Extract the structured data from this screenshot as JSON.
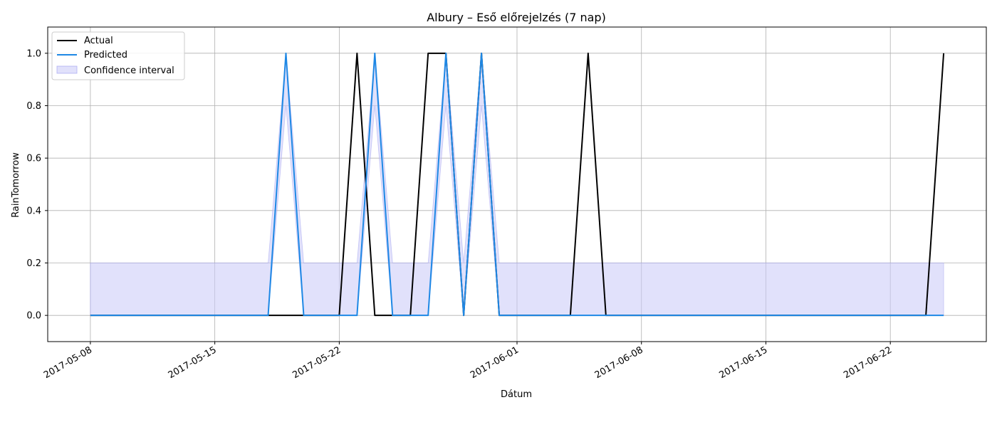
{
  "chart_data": {
    "type": "line",
    "title": "Albury – Eső előrejelzés (7 nap)",
    "xlabel": "Dátum",
    "ylabel": "RainTomorrow",
    "ylim": [
      -0.1,
      1.1
    ],
    "xlim_day_offsets": [
      -2.4,
      50.4
    ],
    "start_date": "2017-05-08",
    "grid": true,
    "legend_position": "upper-left",
    "x_tick_offsets": [
      0,
      7,
      14,
      24,
      31,
      38,
      45
    ],
    "x_tick_labels": [
      "2017-05-08",
      "2017-05-15",
      "2017-05-22",
      "2017-06-01",
      "2017-06-08",
      "2017-06-15",
      "2017-06-22"
    ],
    "y_ticks": [
      0.0,
      0.2,
      0.4,
      0.6,
      0.8,
      1.0
    ],
    "y_tick_labels": [
      "0.0",
      "0.2",
      "0.4",
      "0.6",
      "0.8",
      "1.0"
    ],
    "x_day_offsets": [
      0,
      1,
      2,
      3,
      4,
      5,
      6,
      7,
      8,
      9,
      10,
      11,
      12,
      13,
      14,
      15,
      16,
      17,
      18,
      19,
      20,
      21,
      22,
      23,
      24,
      25,
      26,
      27,
      28,
      29,
      30,
      31,
      32,
      33,
      34,
      35,
      36,
      37,
      38,
      39,
      40,
      41,
      42,
      43,
      44,
      45,
      46,
      47,
      48
    ],
    "series": [
      {
        "name": "Actual",
        "color": "#000000",
        "values": [
          0,
          0,
          0,
          0,
          0,
          0,
          0,
          0,
          0,
          0,
          0,
          0,
          0,
          0,
          0,
          1,
          0,
          0,
          0,
          1,
          1,
          0,
          1,
          0,
          0,
          0,
          0,
          0,
          1,
          0,
          0,
          0,
          0,
          0,
          0,
          0,
          0,
          0,
          0,
          0,
          0,
          0,
          0,
          0,
          0,
          0,
          0,
          0,
          1
        ]
      },
      {
        "name": "Predicted",
        "color": "#1e88e5",
        "values": [
          0,
          0,
          0,
          0,
          0,
          0,
          0,
          0,
          0,
          0,
          0,
          1,
          0,
          0,
          0,
          0,
          1,
          0,
          0,
          0,
          1,
          0,
          1,
          0,
          0,
          0,
          0,
          0,
          0,
          0,
          0,
          0,
          0,
          0,
          0,
          0,
          0,
          0,
          0,
          0,
          0,
          0,
          0,
          0,
          0,
          0,
          0,
          0,
          0
        ]
      }
    ],
    "confidence_interval": {
      "name": "Confidence interval",
      "color": "#c8c8f8",
      "lower": [
        0,
        0,
        0,
        0,
        0,
        0,
        0,
        0,
        0,
        0,
        0,
        0.8,
        0,
        0,
        0,
        0,
        0.8,
        0,
        0,
        0,
        0.8,
        0,
        0.8,
        0,
        0,
        0,
        0,
        0,
        0,
        0,
        0,
        0,
        0,
        0,
        0,
        0,
        0,
        0,
        0,
        0,
        0,
        0,
        0,
        0,
        0,
        0,
        0,
        0,
        0
      ],
      "upper": [
        0.2,
        0.2,
        0.2,
        0.2,
        0.2,
        0.2,
        0.2,
        0.2,
        0.2,
        0.2,
        0.2,
        1,
        0.2,
        0.2,
        0.2,
        0.2,
        1,
        0.2,
        0.2,
        0.2,
        1,
        0.2,
        1,
        0.2,
        0.2,
        0.2,
        0.2,
        0.2,
        0.2,
        0.2,
        0.2,
        0.2,
        0.2,
        0.2,
        0.2,
        0.2,
        0.2,
        0.2,
        0.2,
        0.2,
        0.2,
        0.2,
        0.2,
        0.2,
        0.2,
        0.2,
        0.2,
        0.2,
        0.2
      ]
    }
  }
}
